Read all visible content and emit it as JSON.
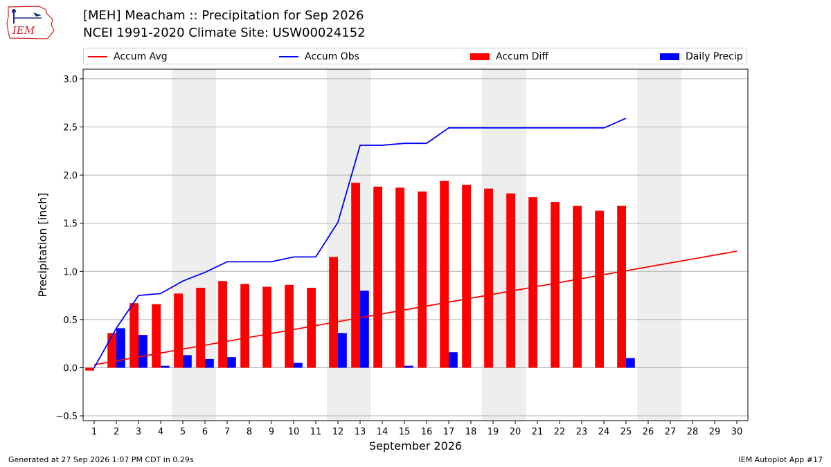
{
  "header": {
    "logo_text": "IEM",
    "title_line1": "[MEH] Meacham :: Precipitation for Sep 2026",
    "title_line2": "NCEI 1991-2020 Climate Site: USW00024152"
  },
  "legend": {
    "items": [
      {
        "label": "Accum Avg",
        "kind": "line",
        "color": "#ff0000"
      },
      {
        "label": "Accum Obs",
        "kind": "line",
        "color": "#0000ff"
      },
      {
        "label": "Accum Diff",
        "kind": "patch",
        "color": "#ff0000"
      },
      {
        "label": "Daily Precip",
        "kind": "patch",
        "color": "#0000ff"
      }
    ]
  },
  "footer": {
    "left": "Generated at 27 Sep 2026 1:07 PM CDT in 0.29s",
    "right": "IEM Autoplot App #17"
  },
  "chart_data": {
    "type": "bar",
    "xlabel": "September 2026",
    "ylabel": "Precipitation [inch]",
    "xlim": [
      0.5,
      30.5
    ],
    "ylim": [
      -0.55,
      3.1
    ],
    "y_ticks": [
      -0.5,
      0.0,
      0.5,
      1.0,
      1.5,
      2.0,
      2.5,
      3.0
    ],
    "y_tick_labels": [
      "−0.5",
      "0.0",
      "0.5",
      "1.0",
      "1.5",
      "2.0",
      "2.5",
      "3.0"
    ],
    "grid": "horizontal",
    "weekend_shading": [
      [
        5,
        6
      ],
      [
        12,
        13
      ],
      [
        19,
        20
      ],
      [
        26,
        27
      ]
    ],
    "shading_color": "#eeeeee",
    "x": [
      1,
      2,
      3,
      4,
      5,
      6,
      7,
      8,
      9,
      10,
      11,
      12,
      13,
      14,
      15,
      16,
      17,
      18,
      19,
      20,
      21,
      22,
      23,
      24,
      25,
      26,
      27,
      28,
      29,
      30
    ],
    "series": [
      {
        "name": "Accum Avg",
        "type": "line",
        "color": "#ff0000",
        "x": [
          1,
          30
        ],
        "values": [
          0.03,
          1.21
        ]
      },
      {
        "name": "Accum Obs",
        "type": "line",
        "color": "#0000ff",
        "x": [
          1,
          2,
          3,
          4,
          5,
          6,
          7,
          8,
          9,
          10,
          11,
          12,
          13,
          14,
          15,
          16,
          17,
          18,
          19,
          20,
          21,
          22,
          23,
          24,
          25
        ],
        "values": [
          0.0,
          0.41,
          0.75,
          0.77,
          0.9,
          0.99,
          1.1,
          1.1,
          1.1,
          1.15,
          1.15,
          1.51,
          2.31,
          2.31,
          2.33,
          2.33,
          2.49,
          2.49,
          2.49,
          2.49,
          2.49,
          2.49,
          2.49,
          2.49,
          2.59
        ]
      },
      {
        "name": "Accum Diff",
        "type": "bar",
        "color": "#ff0000",
        "x": [
          1,
          2,
          3,
          4,
          5,
          6,
          7,
          8,
          9,
          10,
          11,
          12,
          13,
          14,
          15,
          16,
          17,
          18,
          19,
          20,
          21,
          22,
          23,
          24,
          25
        ],
        "values": [
          -0.03,
          0.36,
          0.67,
          0.66,
          0.77,
          0.83,
          0.9,
          0.87,
          0.84,
          0.86,
          0.83,
          1.15,
          1.92,
          1.88,
          1.87,
          1.83,
          1.94,
          1.9,
          1.86,
          1.81,
          1.77,
          1.72,
          1.68,
          1.63,
          1.68
        ]
      },
      {
        "name": "Daily Precip",
        "type": "bar",
        "color": "#0000ff",
        "x": [
          1,
          2,
          3,
          4,
          5,
          6,
          7,
          8,
          9,
          10,
          11,
          12,
          13,
          14,
          15,
          16,
          17,
          18,
          19,
          20,
          21,
          22,
          23,
          24,
          25
        ],
        "values": [
          0.0,
          0.41,
          0.34,
          0.02,
          0.13,
          0.09,
          0.11,
          0.0,
          0.0,
          0.05,
          0.0,
          0.36,
          0.8,
          0.0,
          0.02,
          0.0,
          0.16,
          0.0,
          0.0,
          0.0,
          0.0,
          0.0,
          0.0,
          0.0,
          0.1
        ]
      }
    ]
  }
}
